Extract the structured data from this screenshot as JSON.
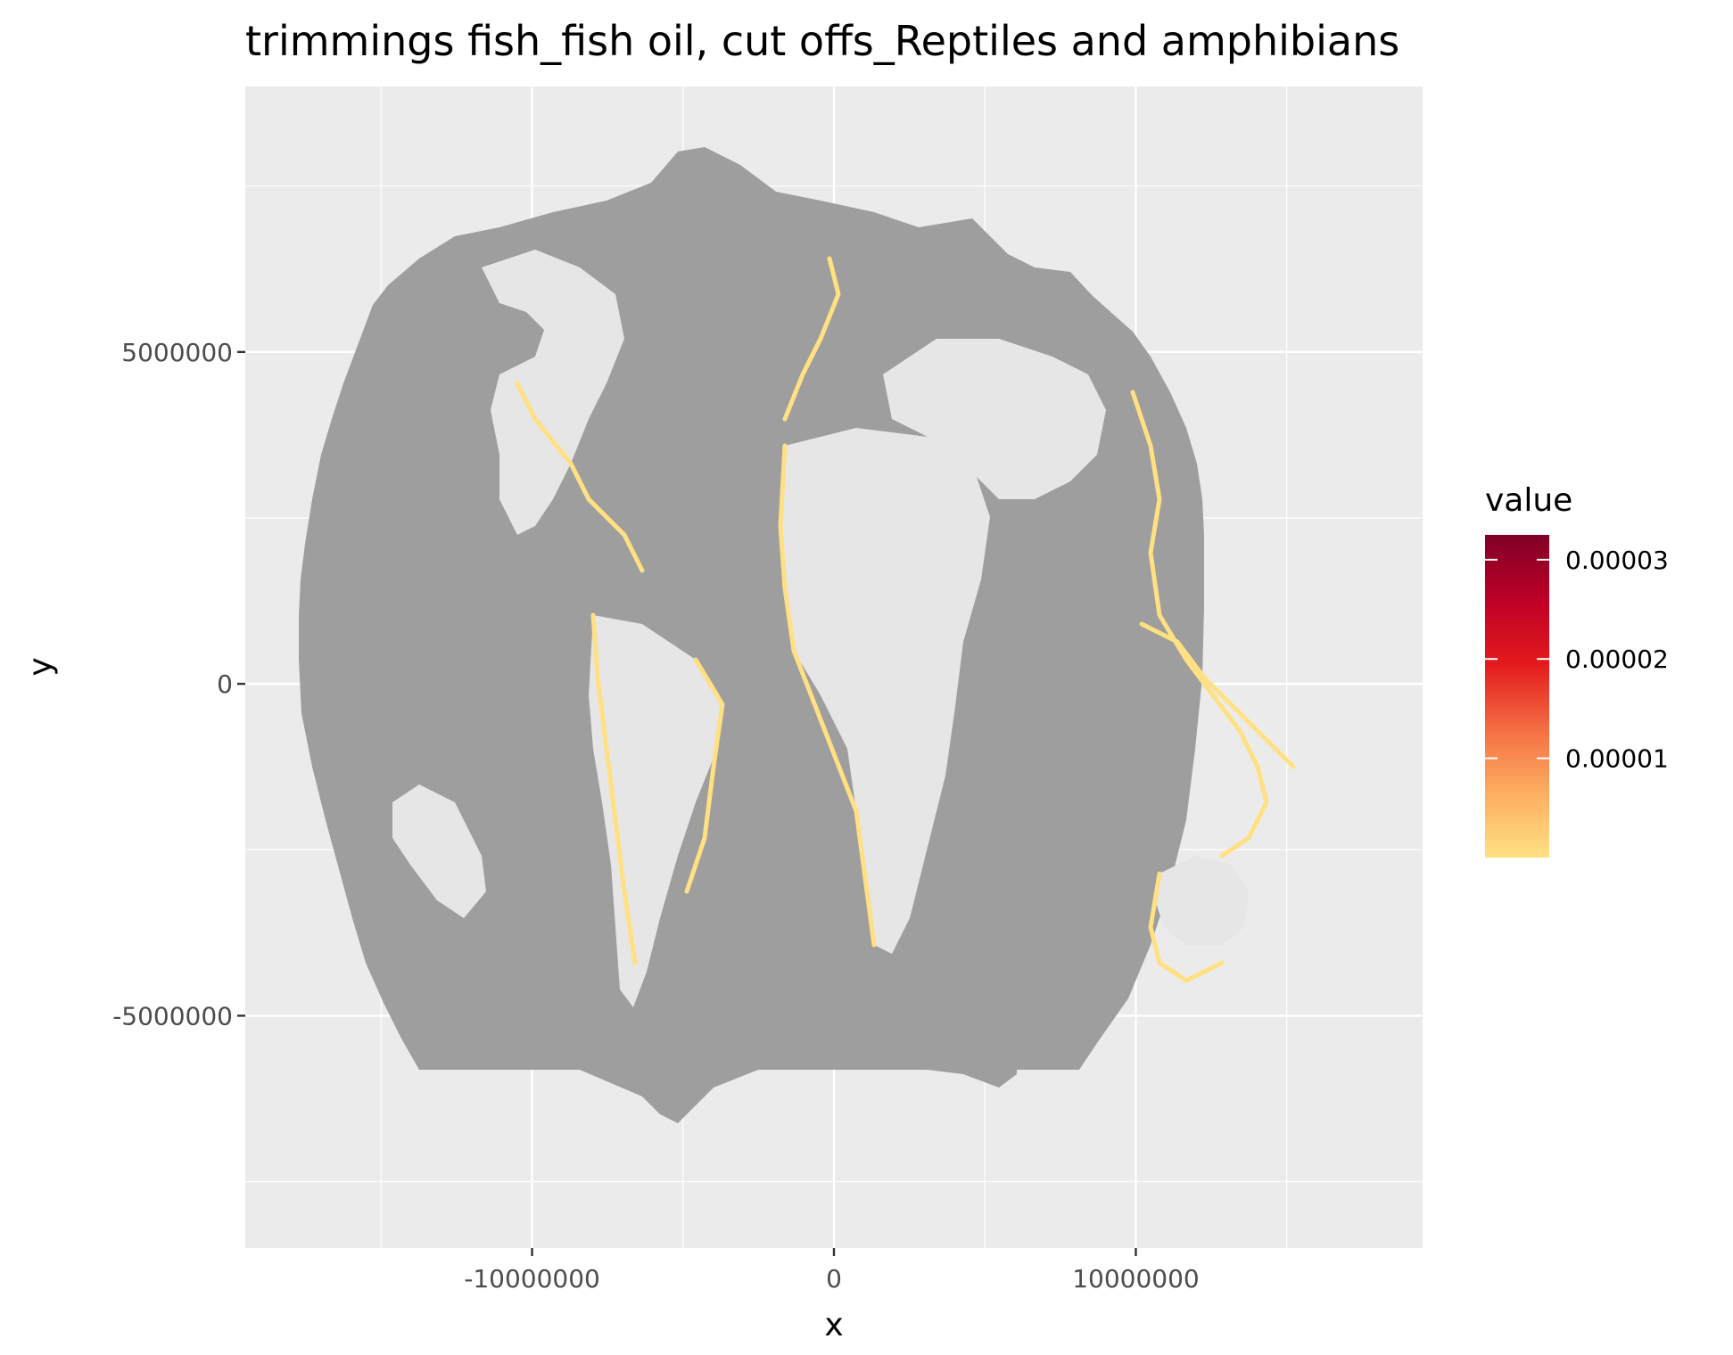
{
  "chart_data": {
    "type": "heatmap",
    "title": "trimmings fish_fish oil, cut offs_Reptiles and amphibians",
    "xlabel": "x",
    "ylabel": "y",
    "xlim": [
      -19500000,
      19500000
    ],
    "ylim": [
      -8500000,
      9000000
    ],
    "x_ticks": [
      -10000000,
      0,
      10000000
    ],
    "x_tick_labels": [
      "-10000000",
      "0",
      "10000000"
    ],
    "y_ticks": [
      5000000,
      0,
      -5000000
    ],
    "y_tick_labels": [
      "5000000",
      "0",
      "-5000000"
    ],
    "grid": true,
    "legend": {
      "title": "value",
      "position": "right",
      "type": "colorbar",
      "range": [
        0,
        3.25e-05
      ],
      "breaks": [
        3e-05,
        2e-05,
        1e-05
      ],
      "break_labels": [
        "0.00003",
        "0.00002",
        "0.00001"
      ],
      "colors": [
        "#ffe082",
        "#fdae61",
        "#f46d43",
        "#e31a1c",
        "#bd0026",
        "#800026"
      ]
    },
    "colors": {
      "panel_background": "#ebebeb",
      "grid_line": "#ffffff",
      "na_fill": "#9e9e9e",
      "land": "#e6e6e6",
      "low_value": "#ffe082"
    }
  }
}
